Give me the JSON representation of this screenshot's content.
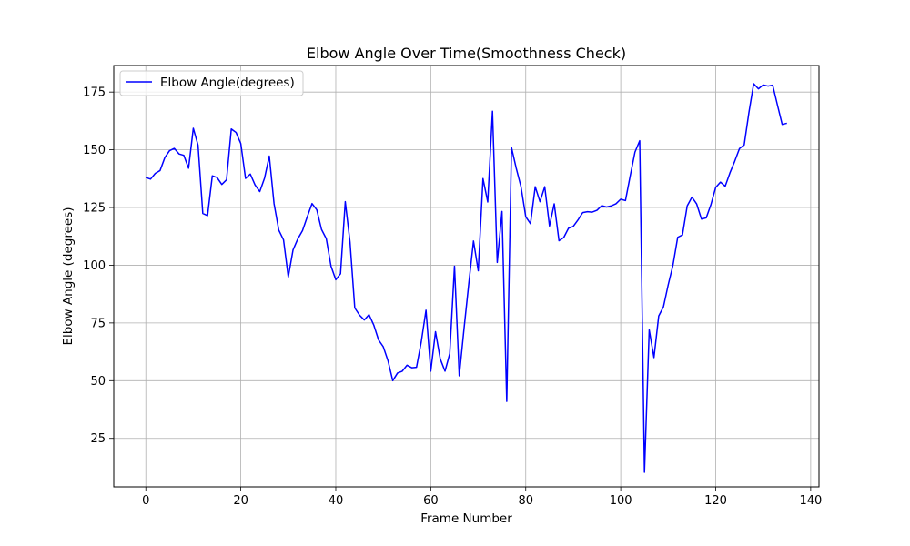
{
  "chart_data": {
    "type": "line",
    "title": "Elbow Angle Over Time(Smoothness Check)",
    "xlabel": "Frame Number",
    "ylabel": "Elbow Angle (degrees)",
    "xlim": [
      -6.75,
      141.75
    ],
    "ylim": [
      4.0,
      186.5
    ],
    "xticks": [
      0,
      20,
      40,
      60,
      80,
      100,
      120,
      140
    ],
    "yticks": [
      25,
      50,
      75,
      100,
      125,
      150,
      175
    ],
    "grid": true,
    "legend_position": "top-left",
    "series": [
      {
        "name": "Elbow Angle(degrees)",
        "color": "#0000ff",
        "x": [
          0,
          1,
          2,
          3,
          4,
          5,
          6,
          7,
          8,
          9,
          10,
          11,
          12,
          13,
          14,
          15,
          16,
          17,
          18,
          19,
          20,
          21,
          22,
          23,
          24,
          25,
          26,
          27,
          28,
          29,
          30,
          31,
          32,
          33,
          34,
          35,
          36,
          37,
          38,
          39,
          40,
          41,
          42,
          43,
          44,
          45,
          46,
          47,
          48,
          49,
          50,
          51,
          52,
          53,
          54,
          55,
          56,
          57,
          58,
          59,
          60,
          61,
          62,
          63,
          64,
          65,
          66,
          67,
          68,
          69,
          70,
          71,
          72,
          73,
          74,
          75,
          76,
          77,
          78,
          79,
          80,
          81,
          82,
          83,
          84,
          85,
          86,
          87,
          88,
          89,
          90,
          91,
          92,
          93,
          94,
          95,
          96,
          97,
          98,
          99,
          100,
          101,
          102,
          103,
          104,
          105,
          106,
          107,
          108,
          109,
          110,
          111,
          112,
          113,
          114,
          115,
          116,
          117,
          118,
          119,
          120,
          121,
          122,
          123,
          124,
          125,
          126,
          127,
          128,
          129,
          130,
          131,
          132,
          133,
          134,
          135
        ],
        "y": [
          138,
          137.3,
          139.8,
          141,
          146.6,
          149.6,
          150.6,
          148.2,
          147.6,
          142,
          159.3,
          152,
          122.4,
          121.5,
          138.7,
          138,
          135,
          137,
          159,
          157.5,
          152.7,
          137.6,
          139.5,
          134.8,
          131.9,
          137.7,
          147.3,
          126.7,
          115.2,
          111,
          94.9,
          106.6,
          111.4,
          115,
          121,
          126.7,
          124,
          115.5,
          111.5,
          99.6,
          93.7,
          96.3,
          127.5,
          110,
          81.5,
          78.4,
          76.3,
          78.6,
          74.1,
          67.7,
          64.7,
          58.6,
          50,
          53.3,
          54.1,
          56.7,
          55.6,
          55.8,
          66.8,
          80.5,
          54.1,
          71.2,
          59.4,
          54.1,
          61.7,
          99.6,
          52.1,
          72.4,
          91.9,
          110.5,
          97.6,
          137.5,
          127.4,
          166.7,
          101.2,
          123.3,
          41,
          151,
          142,
          134,
          121,
          118,
          134,
          127.5,
          134,
          117,
          126.6,
          110.6,
          112,
          116,
          116.8,
          119.6,
          122.8,
          123.2,
          123,
          123.8,
          125.8,
          125.2,
          125.7,
          126.6,
          128.6,
          128,
          138.7,
          149,
          153.9,
          10.3,
          72,
          60,
          78,
          82,
          91.5,
          100,
          112.1,
          113.1,
          125.7,
          129.5,
          126.5,
          120,
          120.5,
          126.3,
          133.7,
          136,
          134.2,
          140,
          145,
          150.5,
          152.1,
          166.2,
          178.6,
          176.4,
          178.1,
          177.6,
          178,
          169.4,
          161,
          161.5
        ]
      }
    ]
  }
}
